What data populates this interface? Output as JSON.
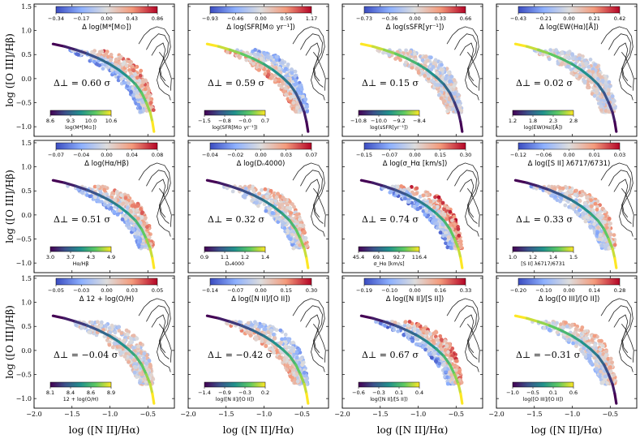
{
  "chart_data": {
    "type": "scatter",
    "title": "",
    "xlabel": "log ([N II]/Hα)",
    "ylabel": "log ([O III]/Hβ)",
    "xlim": [
      -2.0,
      -0.15
    ],
    "ylim": [
      -1.2,
      1.55
    ],
    "xticks": [
      -2.0,
      -1.5,
      -1.0,
      -0.5
    ],
    "xtick_labels": [
      "−2.0",
      "−1.5",
      "−1.0",
      "−0.5"
    ],
    "yticks": [
      -1.0,
      -0.5,
      0.0,
      0.5,
      1.0,
      1.5
    ],
    "ytick_labels": [
      "−1.0",
      "−0.5",
      "0.0",
      "0.5",
      "1.0",
      "1.5"
    ],
    "panels": [
      {
        "top_cbar": {
          "label": "Δ log(M*[M⊙])",
          "ticks": [
            "−0.34",
            "−0.17",
            "0.00",
            "0.43",
            "0.86"
          ]
        },
        "bottom_cbar": {
          "label": "log(M*[M⊙])",
          "ticks": [
            "8.6",
            "9.3",
            "10.0",
            "10.6"
          ]
        },
        "delta_perp": "Δ⊥ = 0.60 σ",
        "trend": 0.6,
        "flip": false
      },
      {
        "top_cbar": {
          "label": "Δ log(SFR[M⊙ yr⁻¹])",
          "ticks": [
            "−0.93",
            "−0.46",
            "0.00",
            "0.59",
            "1.17"
          ]
        },
        "bottom_cbar": {
          "label": "log(SFR[M⊙ yr⁻¹])",
          "ticks": [
            "−1.5",
            "−0.8",
            "−0.0",
            "0.7"
          ]
        },
        "delta_perp": "Δ⊥ = 0.59 σ",
        "trend": 0.59,
        "flip": true
      },
      {
        "top_cbar": {
          "label": "Δ log(sSFR[yr⁻¹])",
          "ticks": [
            "−0.73",
            "−0.36",
            "0.00",
            "0.33",
            "0.66"
          ]
        },
        "bottom_cbar": {
          "label": "log(sSFR[yr⁻¹])",
          "ticks": [
            "−10.8",
            "−10.0",
            "−9.2",
            "−8.4"
          ]
        },
        "delta_perp": "Δ⊥ = 0.15 σ",
        "trend": 0.15,
        "flip": true
      },
      {
        "top_cbar": {
          "label": "Δ log(EW(Hα)[Å])",
          "ticks": [
            "−0.43",
            "−0.21",
            "0.00",
            "0.21",
            "0.42"
          ]
        },
        "bottom_cbar": {
          "label": "log(EW(Hα)[Å])",
          "ticks": [
            "1.2",
            "1.8",
            "2.3",
            "2.8"
          ]
        },
        "delta_perp": "Δ⊥ = 0.02 σ",
        "trend": 0.02,
        "flip": true
      },
      {
        "top_cbar": {
          "label": "Δ log(Hα/Hβ)",
          "ticks": [
            "−0.07",
            "−0.04",
            "0.00",
            "0.04",
            "0.08"
          ]
        },
        "bottom_cbar": {
          "label": "Hα/Hβ",
          "ticks": [
            "3.0",
            "3.7",
            "4.3",
            "4.9"
          ]
        },
        "delta_perp": "Δ⊥ = 0.51 σ",
        "trend": 0.51,
        "flip": false
      },
      {
        "top_cbar": {
          "label": "Δ log(Dₙ4000)",
          "ticks": [
            "−0.04",
            "−0.02",
            "0.00",
            "0.03",
            "0.07"
          ]
        },
        "bottom_cbar": {
          "label": "Dₙ4000",
          "ticks": [
            "0.9",
            "1.1",
            "1.2",
            "1.4"
          ]
        },
        "delta_perp": "Δ⊥ = 0.32 σ",
        "trend": 0.32,
        "flip": false
      },
      {
        "top_cbar": {
          "label": "Δ log(σ_Hα [km/s])",
          "ticks": [
            "−0.15",
            "−0.07",
            "0.00",
            "0.15",
            "0.30"
          ]
        },
        "bottom_cbar": {
          "label": "σ_Hα [km/s]",
          "ticks": [
            "45.4",
            "69.1",
            "92.7",
            "116.4"
          ]
        },
        "delta_perp": "Δ⊥ = 0.74 σ",
        "trend": 0.74,
        "flip": false
      },
      {
        "top_cbar": {
          "label": "Δ log([S II] λ6717/6731)",
          "ticks": [
            "−0.12",
            "−0.06",
            "0.00",
            "0.01",
            "0.03"
          ]
        },
        "bottom_cbar": {
          "label": "[S II] λ6717/6731",
          "ticks": [
            "1.0",
            "1.2",
            "1.4",
            "1.5"
          ]
        },
        "delta_perp": "Δ⊥ = 0.33 σ",
        "trend": 0.33,
        "flip": false
      },
      {
        "top_cbar": {
          "label": "Δ 12 + log(O/H)",
          "ticks": [
            "−0.05",
            "−0.03",
            "0.00",
            "0.03",
            "0.05"
          ]
        },
        "bottom_cbar": {
          "label": "12 + log(O/H)",
          "ticks": [
            "8.1",
            "8.4",
            "8.6",
            "8.9"
          ]
        },
        "delta_perp": "Δ⊥ = −0.04 σ",
        "trend": -0.04,
        "flip": false
      },
      {
        "top_cbar": {
          "label": "Δ log([N II]/[O II])",
          "ticks": [
            "−0.14",
            "−0.07",
            "0.00",
            "0.15",
            "0.30"
          ]
        },
        "bottom_cbar": {
          "label": "log([N II]/[O II])",
          "ticks": [
            "−1.4",
            "−0.9",
            "−0.3",
            "0.2"
          ]
        },
        "delta_perp": "Δ⊥ = −0.42 σ",
        "trend": -0.42,
        "flip": false
      },
      {
        "top_cbar": {
          "label": "Δ log([N II]/[S II])",
          "ticks": [
            "−0.19",
            "−0.10",
            "0.00",
            "0.16",
            "0.33"
          ]
        },
        "bottom_cbar": {
          "label": "log([N II]/[S II])",
          "ticks": [
            "−0.6",
            "−0.3",
            "0.1",
            "0.4"
          ]
        },
        "delta_perp": "Δ⊥ = 0.67 σ",
        "trend": 0.67,
        "flip": false
      },
      {
        "top_cbar": {
          "label": "Δ log([O III]/[O II])",
          "ticks": [
            "−0.20",
            "−0.10",
            "0.00",
            "0.14",
            "0.28"
          ]
        },
        "bottom_cbar": {
          "label": "log([O III]/[O II])",
          "ticks": [
            "−1.0",
            "−0.5",
            "0.1",
            "0.6"
          ]
        },
        "delta_perp": "Δ⊥ = −0.31 σ",
        "trend": -0.31,
        "flip": true
      }
    ],
    "ridge_line": {
      "x": [
        -1.75,
        -1.6,
        -1.45,
        -1.3,
        -1.15,
        -1.0,
        -0.88,
        -0.76,
        -0.66,
        -0.58,
        -0.52,
        -0.47,
        -0.44,
        -0.42
      ],
      "y": [
        0.72,
        0.67,
        0.6,
        0.52,
        0.42,
        0.3,
        0.18,
        0.03,
        -0.12,
        -0.3,
        -0.5,
        -0.7,
        -0.9,
        -1.1
      ]
    },
    "cloud_region": {
      "upper_x": [
        -1.6,
        -1.45,
        -1.3,
        -1.15,
        -1.0,
        -0.85,
        -0.7,
        -0.58,
        -0.5,
        -0.45,
        -0.42
      ],
      "upper_y": [
        0.68,
        0.68,
        0.66,
        0.62,
        0.55,
        0.48,
        0.35,
        0.15,
        -0.1,
        -0.4,
        -0.7
      ],
      "lower_x": [
        -1.6,
        -1.45,
        -1.3,
        -1.15,
        -1.0,
        -0.88,
        -0.78,
        -0.7,
        -0.64,
        -0.6,
        -0.57,
        -0.55
      ],
      "lower_y": [
        0.62,
        0.52,
        0.4,
        0.26,
        0.1,
        -0.05,
        -0.22,
        -0.4,
        -0.58,
        -0.75,
        -0.92,
        -1.08
      ]
    },
    "contours": [
      {
        "x": [
          -0.62,
          -0.55,
          -0.47,
          -0.38,
          -0.28,
          -0.22,
          -0.2,
          -0.24,
          -0.3,
          -0.35,
          -0.38,
          -0.35,
          -0.28,
          -0.22,
          -0.2
        ],
        "y": [
          0.72,
          0.9,
          1.02,
          1.08,
          1.03,
          0.88,
          0.66,
          0.45,
          0.3,
          0.15,
          -0.03,
          -0.2,
          -0.3,
          -0.35,
          -0.45
        ]
      },
      {
        "x": [
          -0.52,
          -0.45,
          -0.36,
          -0.28,
          -0.23,
          -0.24,
          -0.3,
          -0.35,
          -0.33,
          -0.27,
          -0.22
        ],
        "y": [
          0.6,
          0.8,
          0.93,
          0.9,
          0.75,
          0.55,
          0.38,
          0.2,
          0.02,
          -0.12,
          -0.18
        ]
      },
      {
        "x": [
          -0.45,
          -0.38,
          -0.3,
          -0.27,
          -0.3,
          -0.34,
          -0.32,
          -0.27
        ],
        "y": [
          0.48,
          0.66,
          0.74,
          0.6,
          0.4,
          0.22,
          0.05,
          -0.05
        ]
      },
      {
        "x": [
          -0.35,
          -0.3,
          -0.26,
          -0.22,
          -0.19,
          -0.2
        ],
        "y": [
          0.55,
          0.45,
          0.3,
          0.15,
          0.0,
          -0.25
        ]
      }
    ]
  }
}
